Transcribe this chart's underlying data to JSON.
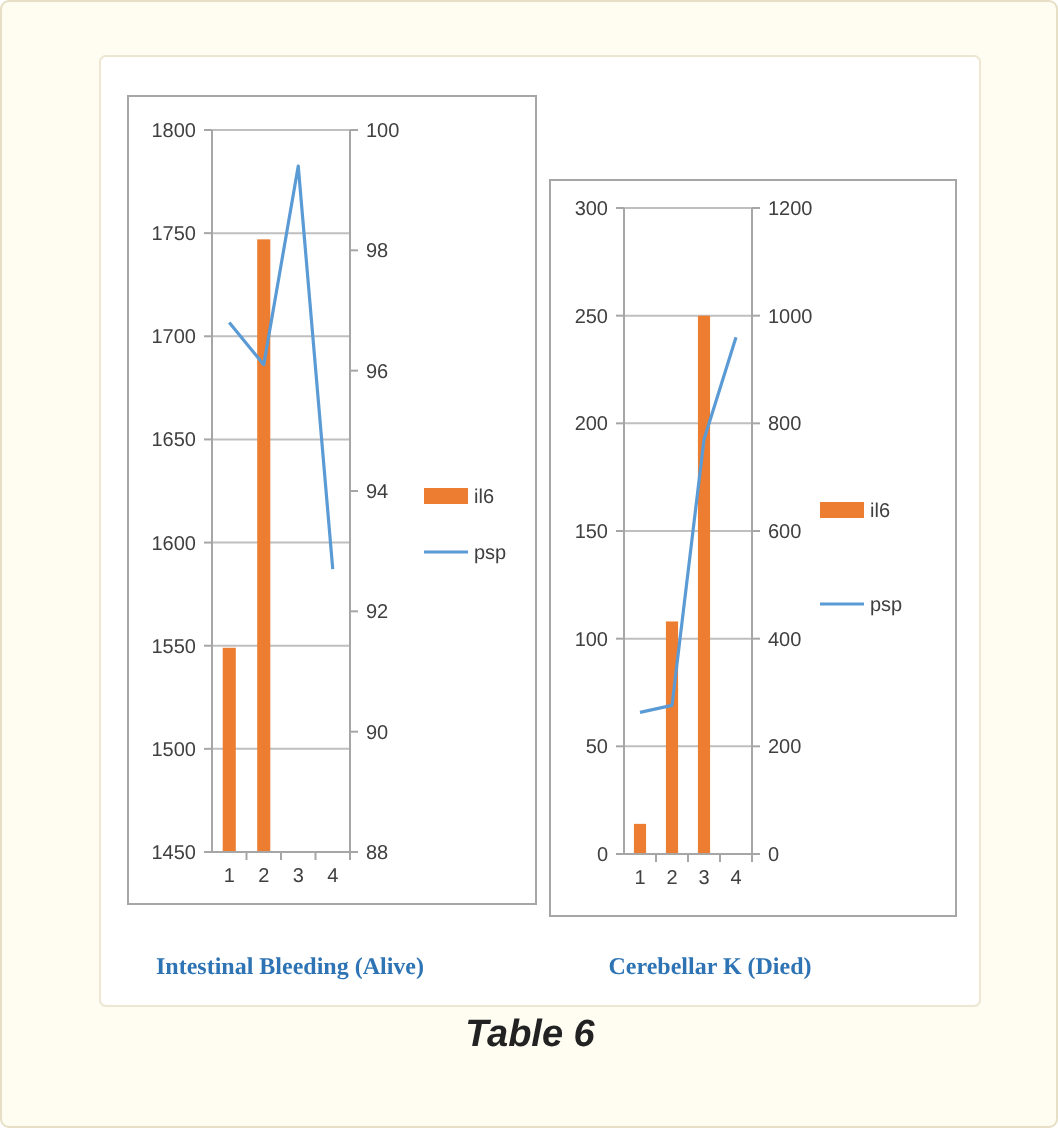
{
  "chart_data": [
    {
      "type": "bar",
      "title": "Intestinal Bleeding (Alive)",
      "categories": [
        "1",
        "2",
        "3",
        "4"
      ],
      "series": [
        {
          "name": "il6",
          "color": "#ed7d31",
          "values": [
            1549,
            1747,
            null,
            null
          ]
        },
        {
          "name": "psp",
          "type": "line",
          "axis": "y2",
          "color": "#5b9bd5",
          "values": [
            96.8,
            96.1,
            99.4,
            92.7
          ]
        }
      ],
      "ylim": [
        1450,
        1800
      ],
      "yticks": [
        1450,
        1500,
        1550,
        1600,
        1650,
        1700,
        1750,
        1800
      ],
      "y2lim": [
        88,
        100
      ],
      "y2ticks": [
        88,
        90,
        92,
        94,
        96,
        98,
        100
      ],
      "grid": "y",
      "legend": "right",
      "marker": "none",
      "annotations": [
        "Table 6"
      ]
    },
    {
      "type": "bar",
      "title": "Cerebellar K (Died)",
      "categories": [
        "1",
        "2",
        "3",
        "4"
      ],
      "series": [
        {
          "name": "il6",
          "color": "#ed7d31",
          "values": [
            14,
            108,
            250,
            null
          ]
        },
        {
          "name": "psp",
          "type": "line",
          "axis": "y2",
          "color": "#5b9bd5",
          "values": [
            263,
            276,
            770,
            960
          ]
        }
      ],
      "ylim": [
        0,
        300
      ],
      "yticks": [
        0,
        50,
        100,
        150,
        200,
        250,
        300
      ],
      "y2lim": [
        0,
        1200
      ],
      "y2ticks": [
        0,
        200,
        400,
        600,
        800,
        1000,
        1200
      ],
      "grid": "y",
      "legend": "right",
      "marker": "none"
    }
  ]
}
